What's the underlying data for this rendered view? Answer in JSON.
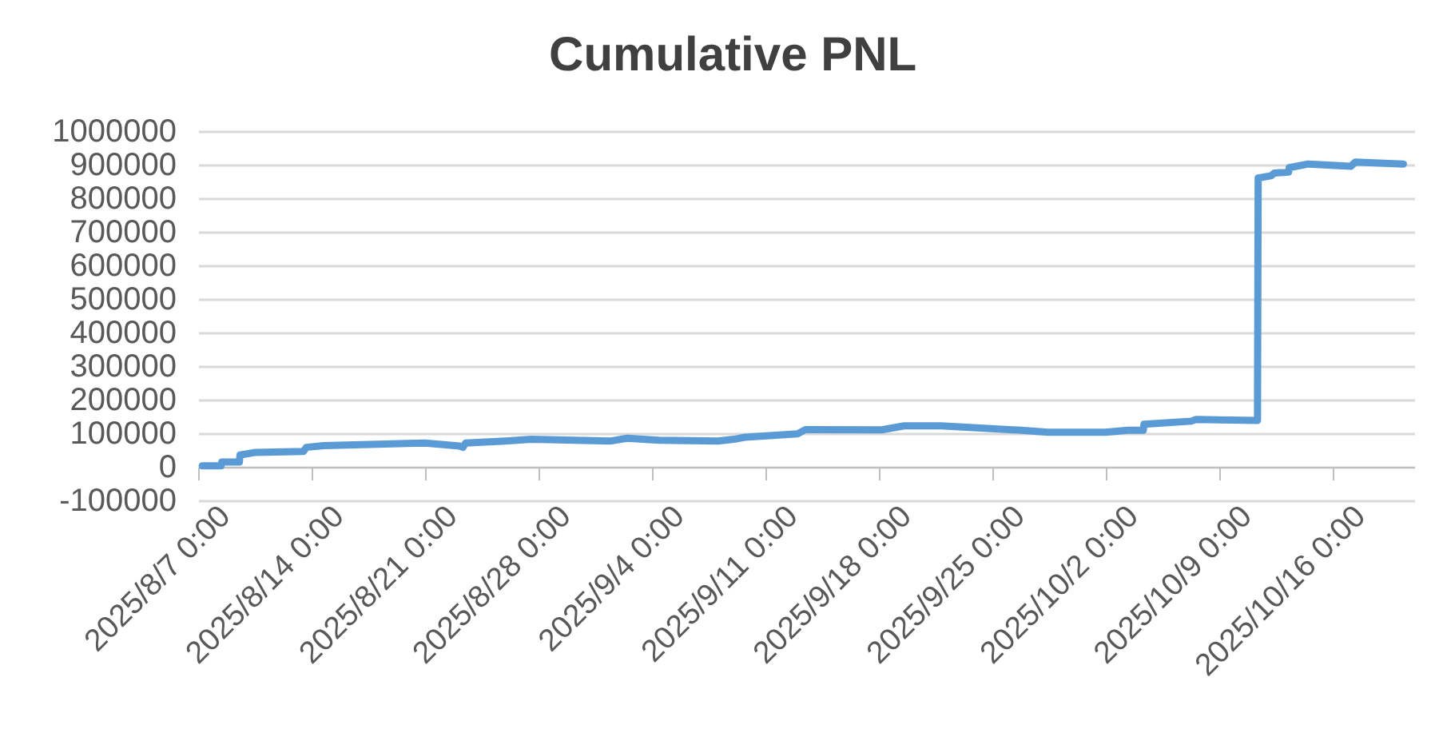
{
  "chart_data": {
    "type": "line",
    "title": "Cumulative PNL",
    "x": [
      "2025-08-07T06:00",
      "2025-08-08T10:00",
      "2025-08-08T11:00",
      "2025-08-09T13:00",
      "2025-08-09T14:00",
      "2025-08-10T13:00",
      "2025-08-13T12:00",
      "2025-08-13T16:00",
      "2025-08-14T18:00",
      "2025-08-21T00:00",
      "2025-08-23T03:00",
      "2025-08-23T08:00",
      "2025-08-23T12:00",
      "2025-08-25T23:00",
      "2025-08-27T13:00",
      "2025-09-01T11:00",
      "2025-09-02T11:00",
      "2025-09-04T10:00",
      "2025-09-08T01:00",
      "2025-09-09T01:00",
      "2025-09-09T17:00",
      "2025-09-12T23:00",
      "2025-09-13T11:00",
      "2025-09-18T04:00",
      "2025-09-19T13:00",
      "2025-09-21T20:00",
      "2025-09-26T18:00",
      "2025-09-28T10:00",
      "2025-10-01T23:00",
      "2025-10-03T08:00",
      "2025-10-04T07:00",
      "2025-10-04T08:00",
      "2025-10-07T06:00",
      "2025-10-07T13:00",
      "2025-10-11T08:00",
      "2025-10-11T09:00",
      "2025-10-12T04:00",
      "2025-10-12T09:00",
      "2025-10-13T06:00",
      "2025-10-13T07:00",
      "2025-10-14T11:00",
      "2025-10-17T02:00",
      "2025-10-17T09:00",
      "2025-10-20T08:00"
    ],
    "series": [
      {
        "color": "#5b9bd5",
        "values": [
          3000,
          3000,
          14000,
          14000,
          35000,
          43000,
          46000,
          58000,
          63000,
          71000,
          62000,
          58000,
          71000,
          77000,
          82000,
          77000,
          85000,
          79000,
          77000,
          82000,
          88000,
          98000,
          111000,
          110000,
          122000,
          122000,
          109000,
          103000,
          103000,
          109000,
          109000,
          127000,
          136000,
          141000,
          138000,
          860000,
          867000,
          875000,
          878000,
          891000,
          902000,
          895000,
          908000,
          902000
        ]
      }
    ],
    "xlim": [
      "2025-08-07",
      "2025-10-21"
    ],
    "xticks": [
      {
        "value": "2025-08-07",
        "label": "2025/8/7 0:00"
      },
      {
        "value": "2025-08-14",
        "label": "2025/8/14 0:00"
      },
      {
        "value": "2025-08-21",
        "label": "2025/8/21 0:00"
      },
      {
        "value": "2025-08-28",
        "label": "2025/8/28 0:00"
      },
      {
        "value": "2025-09-04",
        "label": "2025/9/4 0:00"
      },
      {
        "value": "2025-09-11",
        "label": "2025/9/11 0:00"
      },
      {
        "value": "2025-09-18",
        "label": "2025/9/18 0:00"
      },
      {
        "value": "2025-09-25",
        "label": "2025/9/25 0:00"
      },
      {
        "value": "2025-10-02",
        "label": "2025/10/2 0:00"
      },
      {
        "value": "2025-10-09",
        "label": "2025/10/9 0:00"
      },
      {
        "value": "2025-10-16",
        "label": "2025/10/16 0:00"
      }
    ],
    "ylim": [
      -100000,
      1000000
    ],
    "yticks": [
      -100000,
      0,
      100000,
      200000,
      300000,
      400000,
      500000,
      600000,
      700000,
      800000,
      900000,
      1000000
    ],
    "grid": "y",
    "line_style": "solid"
  }
}
